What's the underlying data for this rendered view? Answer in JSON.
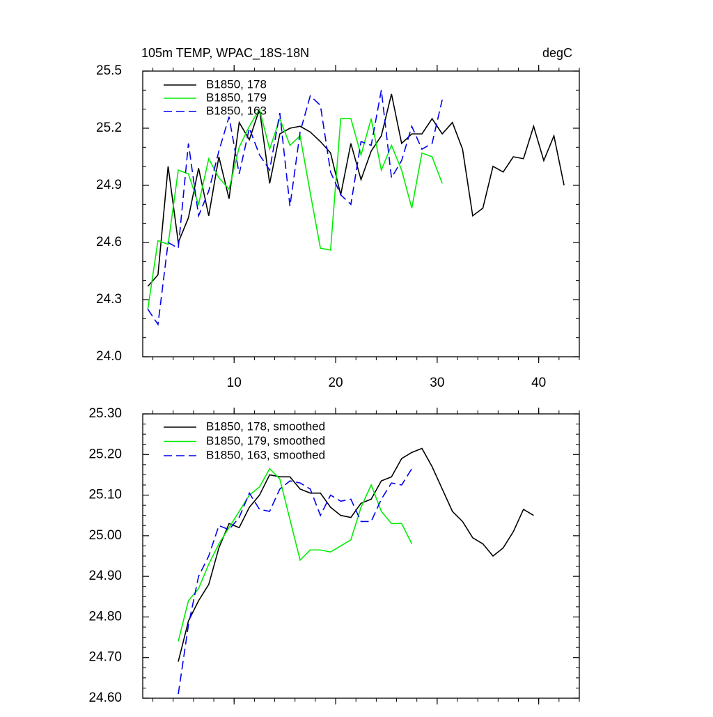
{
  "chart_data": [
    {
      "type": "line",
      "title": "105m TEMP, WPAC_18S-18N",
      "units": "degC",
      "legend": "upper-left",
      "xlim": [
        1,
        44
      ],
      "xticks": [
        10,
        20,
        30,
        40
      ],
      "ylim": [
        24,
        25.5
      ],
      "yticks": [
        {
          "value": 24,
          "label": "24.0"
        },
        24.3,
        24.6,
        24.9,
        25.2,
        25.5
      ],
      "series": [
        {
          "name": "B1850, 178",
          "color": "#000000",
          "dash": false,
          "x": [
            1.5,
            2.5,
            3.5,
            4.5,
            5.5,
            6.5,
            7.5,
            8.5,
            9.5,
            10.5,
            11.5,
            12.5,
            13.5,
            14.5,
            15.5,
            16.5,
            17.5,
            18.5,
            19.5,
            20.5,
            21.5,
            22.5,
            23.5,
            24.5,
            25.5,
            26.5,
            27.5,
            28.5,
            29.5,
            30.5,
            31.5,
            32.5,
            33.5,
            34.5,
            35.5,
            36.5,
            37.5,
            38.5,
            39.5,
            40.5,
            41.5,
            42.5
          ],
          "values": [
            24.37,
            24.43,
            25.0,
            24.6,
            24.73,
            24.99,
            24.74,
            25.05,
            24.83,
            25.23,
            25.14,
            25.3,
            24.91,
            25.17,
            25.2,
            25.21,
            25.18,
            25.13,
            25.07,
            24.85,
            25.12,
            24.93,
            25.08,
            25.16,
            25.38,
            25.12,
            25.17,
            25.17,
            25.25,
            25.17,
            25.23,
            25.09,
            24.74,
            24.78,
            25.0,
            24.97,
            25.05,
            25.04,
            25.21,
            25.03,
            25.16,
            24.9
          ]
        },
        {
          "name": "B1850, 179",
          "color": "#00ee00",
          "dash": false,
          "x": [
            1.5,
            2.5,
            3.5,
            4.5,
            5.5,
            6.5,
            7.5,
            8.5,
            9.5,
            10.5,
            11.5,
            12.5,
            13.5,
            14.5,
            15.5,
            16.5,
            17.5,
            18.5,
            19.5,
            20.5,
            21.5,
            22.5,
            23.5,
            24.5,
            25.5,
            26.5,
            27.5,
            28.5,
            29.5,
            30.5
          ],
          "values": [
            24.25,
            24.61,
            24.59,
            24.98,
            24.96,
            24.8,
            25.04,
            24.94,
            24.88,
            25.1,
            25.21,
            25.3,
            25.09,
            25.25,
            25.11,
            25.16,
            24.86,
            24.57,
            24.56,
            25.25,
            25.25,
            25.06,
            25.25,
            24.98,
            25.11,
            24.98,
            24.78,
            25.07,
            25.05,
            24.91
          ]
        },
        {
          "name": "B1850, 163",
          "color": "#0000ee",
          "dash": true,
          "x": [
            1.5,
            2.5,
            3.5,
            4.5,
            5.5,
            6.5,
            7.5,
            8.5,
            9.5,
            10.5,
            11.5,
            12.5,
            13.5,
            14.5,
            15.5,
            16.5,
            17.5,
            18.5,
            19.5,
            20.5,
            21.5,
            22.5,
            23.5,
            24.5,
            25.5,
            26.5,
            27.5,
            28.5,
            29.5,
            30.5
          ],
          "values": [
            24.25,
            24.17,
            24.6,
            24.57,
            25.12,
            24.74,
            24.87,
            25.08,
            25.26,
            24.96,
            25.2,
            25.06,
            24.98,
            25.28,
            24.79,
            25.18,
            25.37,
            25.32,
            24.97,
            24.85,
            24.8,
            25.13,
            25.11,
            25.4,
            24.94,
            25.03,
            25.21,
            25.09,
            25.12,
            25.35
          ]
        }
      ]
    },
    {
      "type": "line",
      "legend": "upper-left",
      "xlim": [
        1,
        44
      ],
      "xticks": [
        10,
        20,
        30,
        40
      ],
      "ylim": [
        24.6,
        25.3
      ],
      "yticks": [
        {
          "value": 24.6,
          "label": "24.60"
        },
        {
          "value": 24.7,
          "label": "24.70"
        },
        {
          "value": 24.8,
          "label": "24.80"
        },
        {
          "value": 24.9,
          "label": "24.90"
        },
        {
          "value": 25.0,
          "label": "25.00"
        },
        {
          "value": 25.1,
          "label": "25.10"
        },
        {
          "value": 25.2,
          "label": "25.20"
        },
        {
          "value": 25.3,
          "label": "25.30"
        }
      ],
      "series": [
        {
          "name": "B1850, 178, smoothed",
          "color": "#000000",
          "dash": false,
          "x": [
            4.5,
            5.5,
            6.5,
            7.5,
            8.5,
            9.5,
            10.5,
            11.5,
            12.5,
            13.5,
            14.5,
            15.5,
            16.5,
            17.5,
            18.5,
            19.5,
            20.5,
            21.5,
            22.5,
            23.5,
            24.5,
            25.5,
            26.5,
            27.5,
            28.5,
            29.5,
            30.5,
            31.5,
            32.5,
            33.5,
            34.5,
            35.5,
            36.5,
            37.5,
            38.5,
            39.5
          ],
          "values": [
            24.69,
            24.79,
            24.84,
            24.88,
            24.97,
            25.03,
            25.02,
            25.07,
            25.1,
            25.15,
            25.145,
            25.145,
            25.115,
            25.105,
            25.105,
            25.07,
            25.05,
            25.045,
            25.08,
            25.09,
            25.135,
            25.145,
            25.19,
            25.205,
            25.215,
            25.17,
            25.115,
            25.06,
            25.035,
            24.995,
            24.98,
            24.95,
            24.97,
            25.01,
            25.065,
            25.05
          ]
        },
        {
          "name": "B1850, 179, smoothed",
          "color": "#00ee00",
          "dash": false,
          "x": [
            4.5,
            5.5,
            6.5,
            7.5,
            8.5,
            9.5,
            10.5,
            11.5,
            12.5,
            13.5,
            14.5,
            15.5,
            16.5,
            17.5,
            18.5,
            19.5,
            20.5,
            21.5,
            22.5,
            23.5,
            24.5,
            25.5,
            26.5,
            27.5
          ],
          "values": [
            24.74,
            24.84,
            24.87,
            24.93,
            24.98,
            25.02,
            25.06,
            25.1,
            25.12,
            25.165,
            25.14,
            25.04,
            24.94,
            24.965,
            24.965,
            24.96,
            24.975,
            24.99,
            25.07,
            25.125,
            25.06,
            25.03,
            25.03,
            24.98
          ]
        },
        {
          "name": "B1850, 163, smoothed",
          "color": "#0000ee",
          "dash": true,
          "x": [
            4.5,
            5.5,
            6.5,
            7.5,
            8.5,
            9.5,
            10.5,
            11.5,
            12.5,
            13.5,
            14.5,
            15.5,
            16.5,
            17.5,
            18.5,
            19.5,
            20.5,
            21.5,
            22.5,
            23.5,
            24.5,
            25.5,
            26.5,
            27.5
          ],
          "values": [
            24.61,
            24.78,
            24.9,
            24.95,
            25.025,
            25.015,
            25.045,
            25.105,
            25.065,
            25.06,
            25.115,
            25.135,
            25.13,
            25.115,
            25.05,
            25.1,
            25.085,
            25.09,
            25.035,
            25.035,
            25.09,
            25.13,
            25.125,
            25.165
          ]
        }
      ]
    }
  ]
}
